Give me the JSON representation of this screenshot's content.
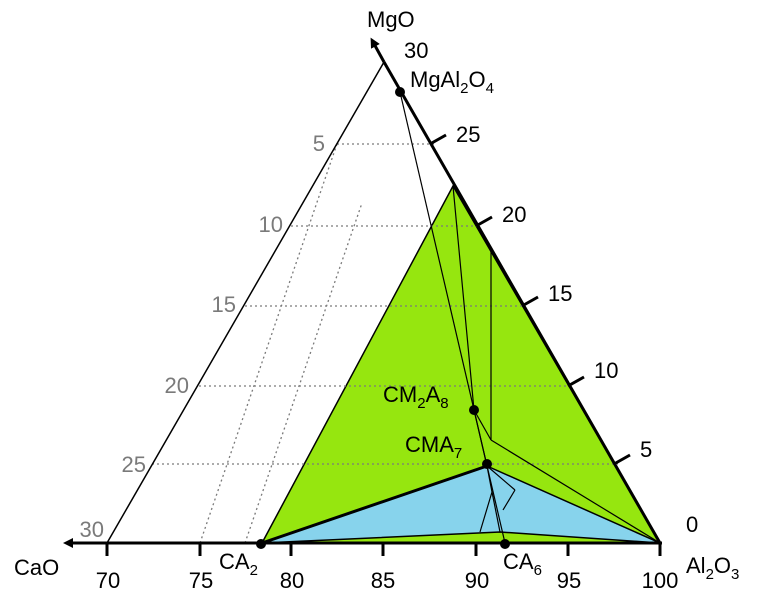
{
  "components": {
    "top": "MgO",
    "left": "CaO",
    "right_main": "Al",
    "right_sub1": "2",
    "right_main2": "O",
    "right_sub2": "3"
  },
  "axes": {
    "bottom_ticks": [
      "70",
      "75",
      "80",
      "85",
      "90",
      "95",
      "100"
    ],
    "right_ticks": [
      "0",
      "5",
      "10",
      "15",
      "20",
      "25",
      "30"
    ],
    "left_ticks": [
      "5",
      "10",
      "15",
      "20",
      "25",
      "30"
    ]
  },
  "phases": {
    "spinel": {
      "a": "MgAl",
      "s1": "2",
      "b": "O",
      "s2": "4"
    },
    "cm2a8": {
      "a": "CM",
      "s1": "2",
      "b": "A",
      "s2": "8"
    },
    "cma7": {
      "a": "CMA",
      "s1": "7"
    },
    "ca2": {
      "a": "CA",
      "s1": "2"
    },
    "ca6": {
      "a": "CA",
      "s1": "6"
    }
  },
  "colors": {
    "green_region": "#96e60f",
    "blue_region": "#87d3ec",
    "grid": "#7a7a7a",
    "lines": "#000000"
  }
}
